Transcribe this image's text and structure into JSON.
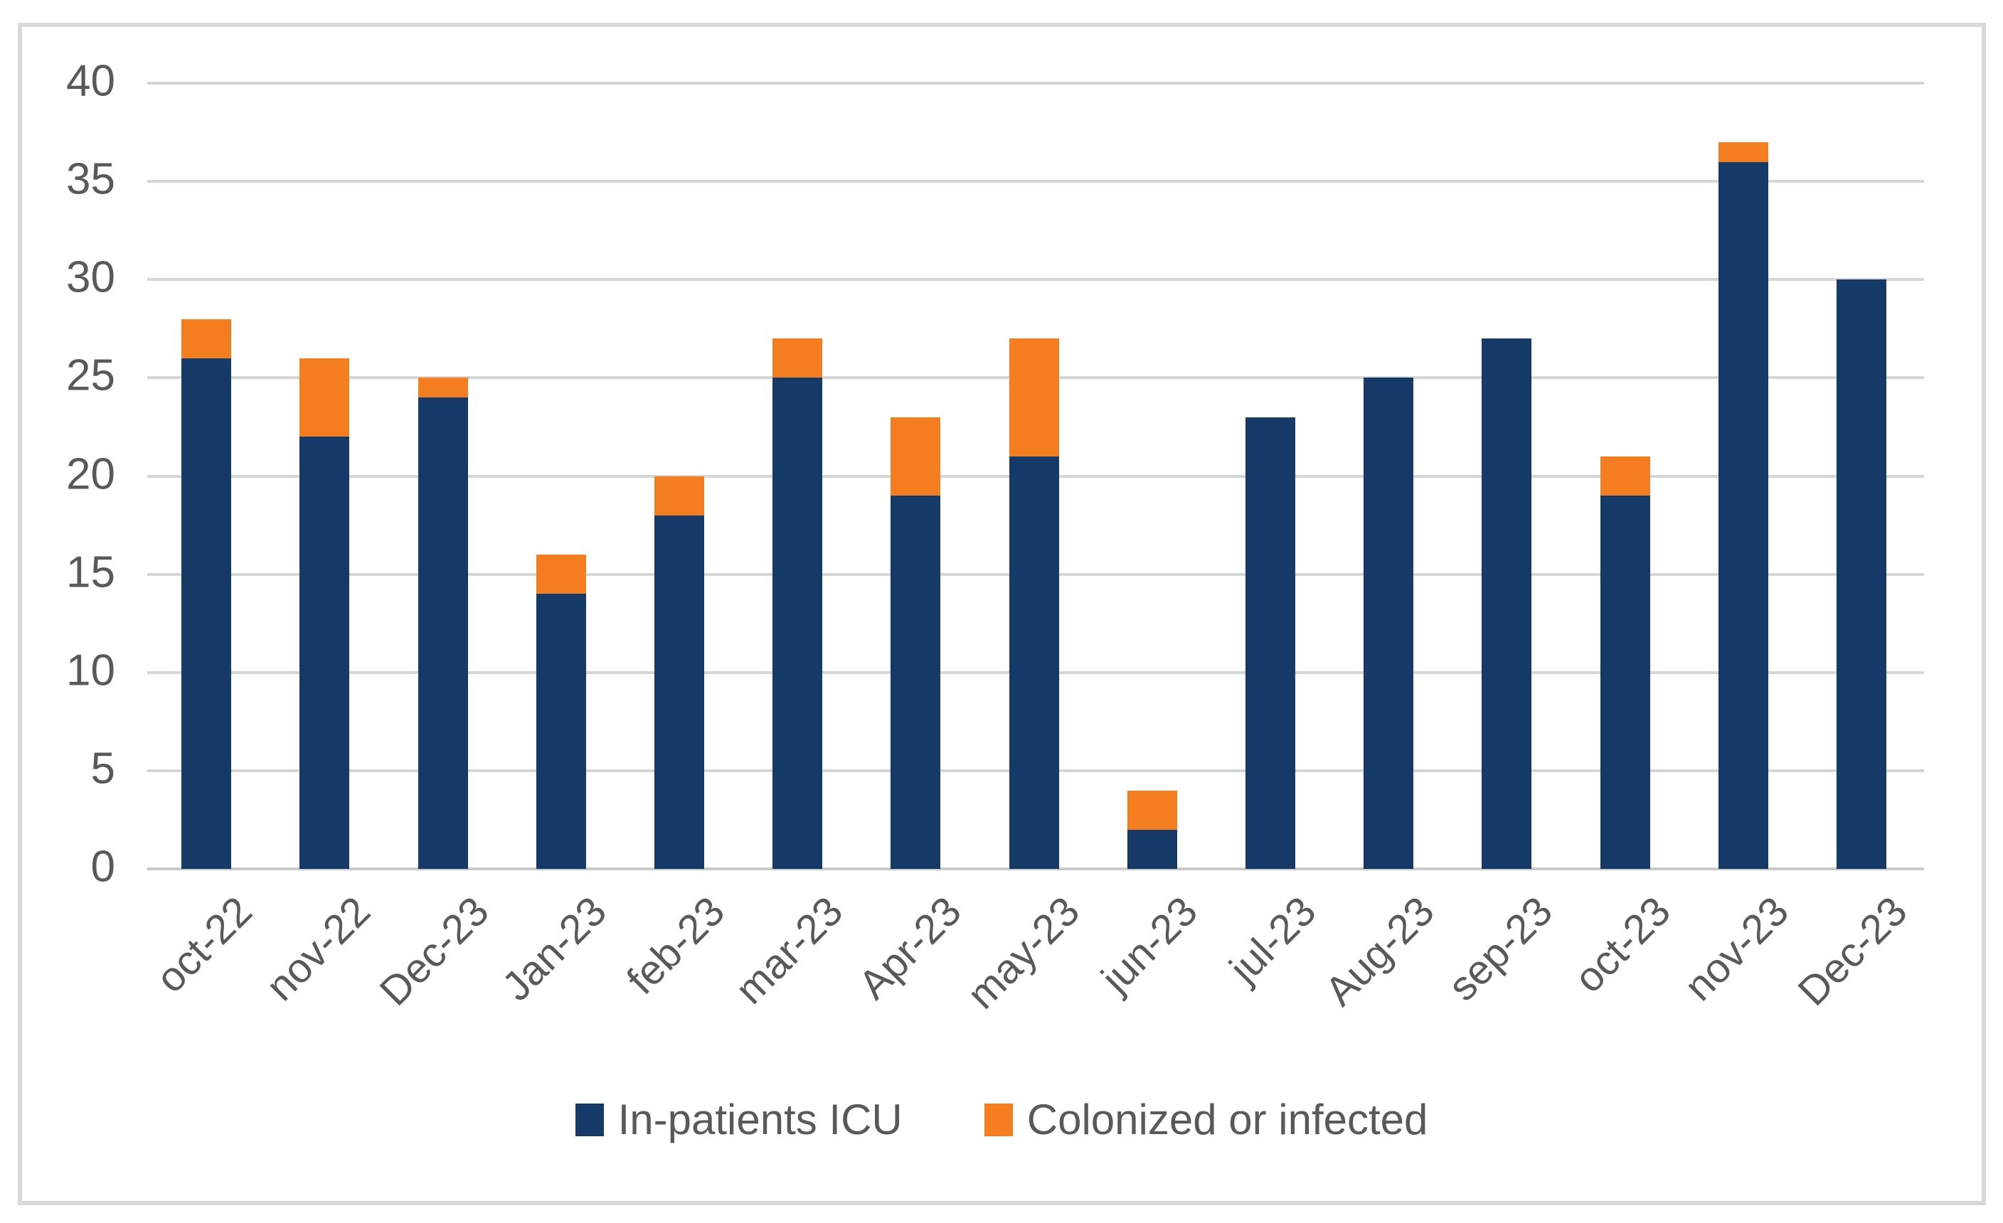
{
  "chart_data": {
    "type": "bar",
    "stacked": true,
    "title": "",
    "xlabel": "",
    "ylabel": "",
    "categories": [
      "oct-22",
      "nov-22",
      "Dec-23",
      "Jan-23",
      "feb-23",
      "mar-23",
      "Apr-23",
      "may-23",
      "jun-23",
      "jul-23",
      "Aug-23",
      "sep-23",
      "oct-23",
      "nov-23",
      "Dec-23"
    ],
    "series": [
      {
        "name": "In-patients ICU",
        "color": "#163a68",
        "values": [
          26,
          22,
          24,
          14,
          18,
          25,
          19,
          21,
          2,
          23,
          25,
          27,
          19,
          36,
          30
        ]
      },
      {
        "name": "Colonized or infected",
        "color": "#f47d20",
        "values": [
          2,
          4,
          1,
          2,
          2,
          2,
          4,
          6,
          2,
          0,
          0,
          0,
          2,
          1,
          0
        ]
      }
    ],
    "totals": [
      28,
      26,
      25,
      16,
      20,
      27,
      23,
      27,
      4,
      23,
      25,
      27,
      21,
      37,
      30
    ],
    "ylim": [
      0,
      40
    ],
    "yticks": [
      0,
      5,
      10,
      15,
      20,
      25,
      30,
      35,
      40
    ],
    "grid": true,
    "legend_position": "bottom"
  },
  "colors": {
    "navy": "#163a68",
    "orange": "#f47d20",
    "gridline": "#d6d6d6",
    "axis_line": "#c9c9c9",
    "tick_text": "#595959",
    "frame_border": "#d9d9d9",
    "background": "#ffffff"
  }
}
